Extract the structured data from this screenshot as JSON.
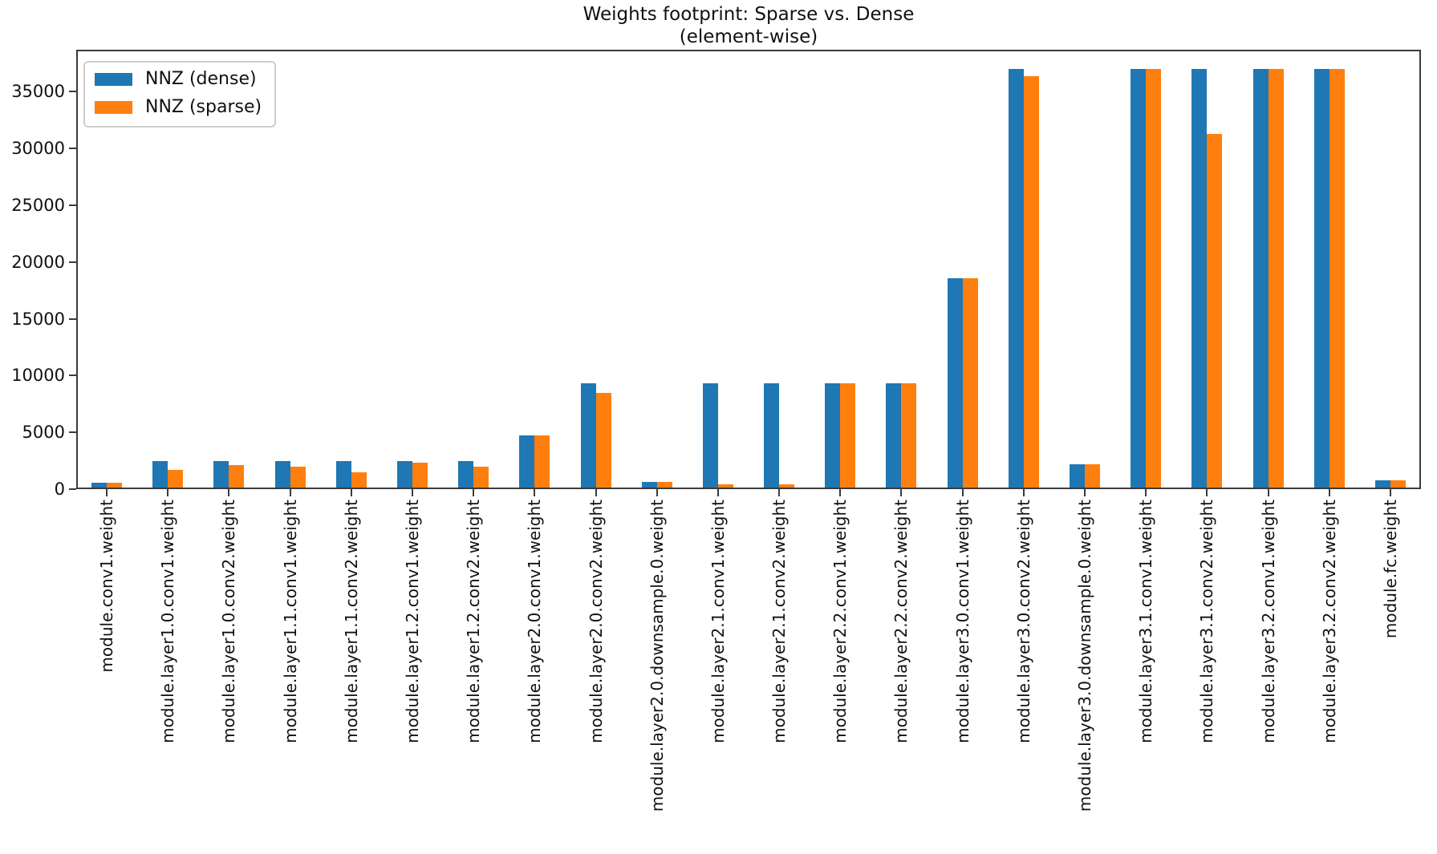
{
  "figure": {
    "title_line1": "Weights footprint: Sparse vs. Dense",
    "title_line2": "(element-wise)"
  },
  "chart_data": {
    "type": "bar",
    "title": "Weights footprint: Sparse vs. Dense\n(element-wise)",
    "xlabel": "",
    "ylabel": "",
    "grid": false,
    "legend_position": "upper left",
    "xticklabel_rotation": 90,
    "ylim": [
      0,
      38707
    ],
    "yticks": [
      0,
      5000,
      10000,
      15000,
      20000,
      25000,
      30000,
      35000
    ],
    "categories": [
      "module.conv1.weight",
      "module.layer1.0.conv1.weight",
      "module.layer1.0.conv2.weight",
      "module.layer1.1.conv1.weight",
      "module.layer1.1.conv2.weight",
      "module.layer1.2.conv1.weight",
      "module.layer1.2.conv2.weight",
      "module.layer2.0.conv1.weight",
      "module.layer2.0.conv2.weight",
      "module.layer2.0.downsample.0.weight",
      "module.layer2.1.conv1.weight",
      "module.layer2.1.conv2.weight",
      "module.layer2.2.conv1.weight",
      "module.layer2.2.conv2.weight",
      "module.layer3.0.conv1.weight",
      "module.layer3.0.conv2.weight",
      "module.layer3.0.downsample.0.weight",
      "module.layer3.1.conv1.weight",
      "module.layer3.1.conv2.weight",
      "module.layer3.2.conv1.weight",
      "module.layer3.2.conv2.weight",
      "module.fc.weight"
    ],
    "series": [
      {
        "name": "NNZ (dense)",
        "color": "#1f77b4",
        "values": [
          432,
          2304,
          2304,
          2304,
          2304,
          2304,
          2304,
          4608,
          9216,
          512,
          9216,
          9216,
          9216,
          9216,
          18432,
          36864,
          2048,
          36864,
          36864,
          36864,
          36864,
          640
        ]
      },
      {
        "name": "NNZ (sparse)",
        "color": "#ff7f0e",
        "values": [
          432,
          1570,
          2000,
          1840,
          1310,
          2170,
          1860,
          4608,
          8350,
          512,
          310,
          270,
          9216,
          9216,
          18432,
          36230,
          2048,
          36864,
          31150,
          36864,
          36864,
          640
        ]
      }
    ]
  }
}
